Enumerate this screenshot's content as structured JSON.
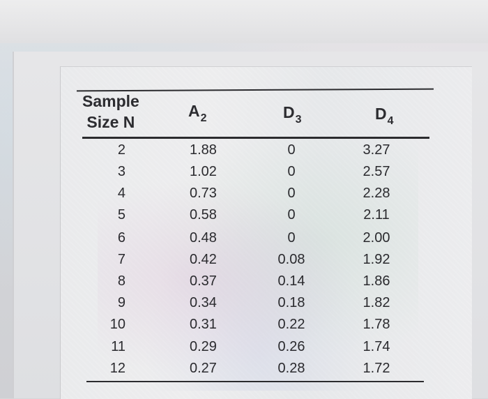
{
  "table": {
    "headers": {
      "n_line1": "Sample",
      "n_line2": "Size N",
      "a2_letter": "A",
      "a2_sub": "2",
      "d3_letter": "D",
      "d3_sub": "3",
      "d4_letter": "D",
      "d4_sub": "4"
    },
    "rows": [
      {
        "n": "2",
        "a2": "1.88",
        "d3": "0",
        "d4": "3.27"
      },
      {
        "n": "3",
        "a2": "1.02",
        "d3": "0",
        "d4": "2.57"
      },
      {
        "n": "4",
        "a2": "0.73",
        "d3": "0",
        "d4": "2.28"
      },
      {
        "n": "5",
        "a2": "0.58",
        "d3": "0",
        "d4": "2.11"
      },
      {
        "n": "6",
        "a2": "0.48",
        "d3": "0",
        "d4": "2.00"
      },
      {
        "n": "7",
        "a2": "0.42",
        "d3": "0.08",
        "d4": "1.92"
      },
      {
        "n": "8",
        "a2": "0.37",
        "d3": "0.14",
        "d4": "1.86"
      },
      {
        "n": "9",
        "a2": "0.34",
        "d3": "0.18",
        "d4": "1.82"
      },
      {
        "n": "10",
        "a2": "0.31",
        "d3": "0.22",
        "d4": "1.78"
      },
      {
        "n": "11",
        "a2": "0.29",
        "d3": "0.26",
        "d4": "1.74"
      },
      {
        "n": "12",
        "a2": "0.27",
        "d3": "0.28",
        "d4": "1.72"
      }
    ]
  }
}
